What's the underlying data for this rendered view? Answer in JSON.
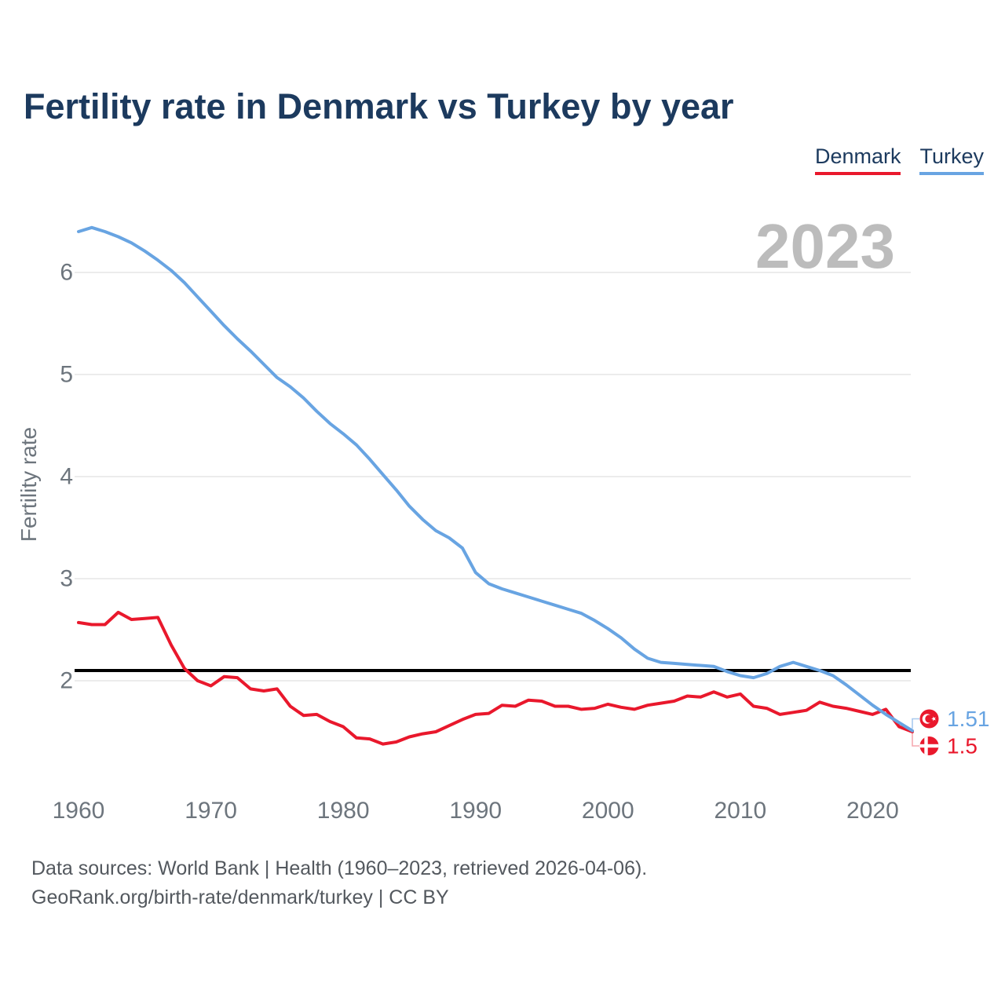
{
  "title": "Fertility rate in Denmark vs Turkey by year",
  "legend": [
    {
      "label": "Denmark",
      "color": "#e9182c"
    },
    {
      "label": "Turkey",
      "color": "#68a4e2"
    }
  ],
  "watermark": "2023",
  "footer": {
    "line1": "Data sources: World Bank | Health (1960–2023, retrieved 2026-04-06).",
    "line2": "GeoRank.org/birth-rate/denmark/turkey | CC BY"
  },
  "colors": {
    "denmark": "#e9182c",
    "turkey": "#68a4e2",
    "title_navy": "#1c3a5e",
    "tick_gray": "#6d757d",
    "watermark_gray": "#bcbcbc",
    "gridline": "#e6e6e6",
    "reference_line": "#000000",
    "connector_blue": "#a9c9ee",
    "connector_red": "#f6aab1"
  },
  "chart_data": {
    "type": "line",
    "title": "Fertility rate in Denmark vs Turkey by year",
    "xlabel": "",
    "ylabel": "Fertility rate",
    "grid": true,
    "legend_position": "top-right",
    "x_start_year": 1960,
    "x_end_year": 2023,
    "x_ticks": [
      1960,
      1970,
      1980,
      1990,
      2000,
      2010,
      2020
    ],
    "y_ticks": [
      2,
      3,
      4,
      5,
      6
    ],
    "ylim": [
      1.3,
      6.6
    ],
    "reference_line": 2.1,
    "series": [
      {
        "name": "Denmark",
        "color": "#e9182c",
        "final_value_label": "1.5",
        "values": [
          2.57,
          2.55,
          2.55,
          2.67,
          2.6,
          2.61,
          2.62,
          2.35,
          2.12,
          2.0,
          1.95,
          2.04,
          2.03,
          1.92,
          1.9,
          1.92,
          1.75,
          1.66,
          1.67,
          1.6,
          1.55,
          1.44,
          1.43,
          1.38,
          1.4,
          1.45,
          1.48,
          1.5,
          1.56,
          1.62,
          1.67,
          1.68,
          1.76,
          1.75,
          1.81,
          1.8,
          1.75,
          1.75,
          1.72,
          1.73,
          1.77,
          1.74,
          1.72,
          1.76,
          1.78,
          1.8,
          1.85,
          1.84,
          1.89,
          1.84,
          1.87,
          1.75,
          1.73,
          1.67,
          1.69,
          1.71,
          1.79,
          1.75,
          1.73,
          1.7,
          1.67,
          1.72,
          1.55,
          1.5
        ]
      },
      {
        "name": "Turkey",
        "color": "#68a4e2",
        "final_value_label": "1.51",
        "values": [
          6.4,
          6.44,
          6.4,
          6.35,
          6.29,
          6.21,
          6.12,
          6.02,
          5.9,
          5.76,
          5.62,
          5.48,
          5.35,
          5.23,
          5.1,
          4.97,
          4.88,
          4.77,
          4.64,
          4.52,
          4.42,
          4.31,
          4.17,
          4.02,
          3.87,
          3.71,
          3.58,
          3.47,
          3.4,
          3.3,
          3.06,
          2.95,
          2.9,
          2.86,
          2.82,
          2.78,
          2.74,
          2.7,
          2.66,
          2.59,
          2.51,
          2.42,
          2.31,
          2.22,
          2.18,
          2.17,
          2.16,
          2.15,
          2.14,
          2.09,
          2.05,
          2.03,
          2.07,
          2.14,
          2.18,
          2.14,
          2.1,
          2.05,
          1.96,
          1.86,
          1.76,
          1.67,
          1.59,
          1.51
        ]
      }
    ]
  }
}
